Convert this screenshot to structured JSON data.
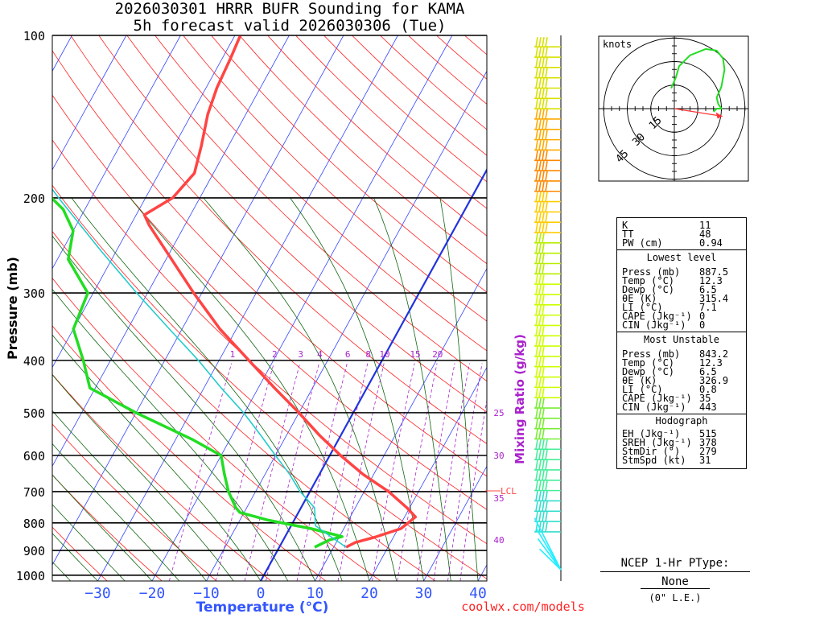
{
  "header": {
    "title_line1": "2026030301 HRRR BUFR Sounding for KAMA",
    "title_line2": "5h forecast valid 2026030306 (Tue)"
  },
  "axes": {
    "ylabel": "Pressure (mb)",
    "xlabel": "Temperature (°C)",
    "pressure_ticks": [
      "100",
      "200",
      "300",
      "400",
      "500",
      "600",
      "700",
      "800",
      "900",
      "1000"
    ],
    "temp_ticks": [
      "−30",
      "−20",
      "−10",
      "0",
      "10",
      "20",
      "30",
      "40"
    ],
    "mixing_ratio_label": "Mixing Ratio (g/kg)",
    "mixing_ratio_top": [
      "1",
      "2",
      "3",
      "4",
      "6",
      "8",
      "10",
      "15",
      "20"
    ],
    "mixing_ratio_side": [
      "25",
      "30",
      "35",
      "40"
    ],
    "lcl_label": "LCL"
  },
  "colors": {
    "temperature": "#ff4444",
    "dewpoint": "#22dd22",
    "parcel": "#22cccc",
    "freezing_line": "#2233dd",
    "isotherms": "#3344ff",
    "dry_adiabats": "#ff2222",
    "moist_adiabats": "#116611",
    "mixing_ratio": "#aa22cc",
    "temp_axis_label": "#3355ff"
  },
  "hodograph": {
    "units_label": "knots",
    "ring_labels": [
      "15",
      "30",
      "45"
    ]
  },
  "indices": {
    "k_label": "K",
    "k_value": "11",
    "tt_label": "TT",
    "tt_value": "48",
    "pw_label": "PW (cm)",
    "pw_value": "0.94",
    "lowest_title": "Lowest level",
    "lowest": [
      {
        "label": "Press (mb)",
        "value": "887.5"
      },
      {
        "label": "Temp (°C)",
        "value": "12.3"
      },
      {
        "label": "Dewp (°C)",
        "value": "6.5"
      },
      {
        "label": "θE (K)",
        "value": "315.4"
      },
      {
        "label": "LI (°C)",
        "value": "7.1"
      },
      {
        "label": "CAPE (Jkg⁻¹)",
        "value": "0"
      },
      {
        "label": "CIN (Jkg⁻¹)",
        "value": "0"
      }
    ],
    "unstable_title": "Most Unstable",
    "unstable": [
      {
        "label": "Press (mb)",
        "value": "843.2"
      },
      {
        "label": "Temp (°C)",
        "value": "12.3"
      },
      {
        "label": "Dewp (°C)",
        "value": "6.5"
      },
      {
        "label": "θE (K)",
        "value": "326.9"
      },
      {
        "label": "LI (°C)",
        "value": "0.8"
      },
      {
        "label": "CAPE (Jkg⁻¹)",
        "value": "35"
      },
      {
        "label": "CIN (Jkg⁻¹)",
        "value": "443"
      }
    ],
    "hodo_title": "Hodograph",
    "hodo": [
      {
        "label": "EH (Jkg⁻¹)",
        "value": "515"
      },
      {
        "label": "SREH (Jkg⁻¹)",
        "value": "378"
      },
      {
        "label": "StmDir (°)",
        "value": "279"
      },
      {
        "label": "StmSpd (kt)",
        "value": "31"
      }
    ]
  },
  "ptype": {
    "title": "NCEP 1-Hr PType:",
    "value": "None",
    "accum": "(0\" L.E.)"
  },
  "footer": {
    "credit": "coolwx.com/models"
  },
  "chart_data": {
    "type": "line",
    "title": "2026030301 HRRR BUFR Sounding for KAMA",
    "subtitle": "5h forecast valid 2026030306 (Tue)",
    "xlabel": "Temperature (°C)",
    "ylabel": "Pressure (mb)",
    "xlim": [
      -38,
      42
    ],
    "ylim": [
      1025,
      100
    ],
    "y_scale": "log",
    "skew": true,
    "series": [
      {
        "key": "temperature",
        "points": [
          [
            887.5,
            12.3
          ],
          [
            870,
            13.5
          ],
          [
            850,
            16.6
          ],
          [
            820,
            20.5
          ],
          [
            780,
            22
          ],
          [
            750,
            19.5
          ],
          [
            700,
            14.5
          ],
          [
            650,
            8
          ],
          [
            600,
            2
          ],
          [
            550,
            -4
          ],
          [
            500,
            -10
          ],
          [
            450,
            -17
          ],
          [
            400,
            -24.5
          ],
          [
            350,
            -33
          ],
          [
            300,
            -41.5
          ],
          [
            250,
            -51
          ],
          [
            225,
            -56.5
          ],
          [
            215,
            -58.5
          ],
          [
            200,
            -55
          ],
          [
            180,
            -53.5
          ],
          [
            160,
            -55
          ],
          [
            140,
            -57
          ],
          [
            125,
            -58
          ],
          [
            110,
            -58.5
          ],
          [
            100,
            -59
          ]
        ]
      },
      {
        "key": "dewpoint",
        "points": [
          [
            887.5,
            6.5
          ],
          [
            860,
            8.5
          ],
          [
            848,
            10.5
          ],
          [
            820,
            4
          ],
          [
            790,
            -5
          ],
          [
            765,
            -10.8
          ],
          [
            750,
            -12
          ],
          [
            700,
            -15
          ],
          [
            650,
            -17.5
          ],
          [
            600,
            -20
          ],
          [
            560,
            -27
          ],
          [
            500,
            -40
          ],
          [
            450,
            -51
          ],
          [
            400,
            -55
          ],
          [
            350,
            -60
          ],
          [
            300,
            -61
          ],
          [
            260,
            -68
          ],
          [
            230,
            -70
          ],
          [
            210,
            -74
          ],
          [
            195,
            -79
          ],
          [
            175,
            -85
          ],
          [
            165,
            -84
          ]
        ]
      },
      {
        "key": "parcel",
        "points": [
          [
            887.5,
            12.3
          ],
          [
            850,
            8.6
          ],
          [
            810,
            4.5
          ],
          [
            750,
            2.5
          ],
          [
            700,
            -1.8
          ],
          [
            650,
            -5.5
          ],
          [
            600,
            -10
          ],
          [
            550,
            -14.8
          ],
          [
            500,
            -20.2
          ],
          [
            450,
            -26.8
          ],
          [
            400,
            -33.8
          ],
          [
            350,
            -42.3
          ],
          [
            300,
            -52
          ],
          [
            250,
            -63
          ],
          [
            200,
            -76
          ],
          [
            150,
            -92
          ],
          [
            110,
            -107
          ],
          [
            100,
            -111
          ]
        ]
      }
    ],
    "freezing_level_isotherm_C": 0,
    "hodograph_points_kt": [
      [
        25,
        -2
      ],
      [
        27,
        0
      ],
      [
        30,
        0
      ],
      [
        28,
        3
      ],
      [
        27,
        7
      ],
      [
        30,
        14
      ],
      [
        32,
        25
      ],
      [
        31,
        32
      ],
      [
        27,
        37
      ],
      [
        20,
        38
      ],
      [
        10,
        34
      ],
      [
        3,
        27
      ],
      [
        1,
        20
      ],
      [
        -2,
        13
      ]
    ],
    "storm_motion_vector": {
      "dir_deg": 279,
      "speed_kt": 31
    }
  }
}
